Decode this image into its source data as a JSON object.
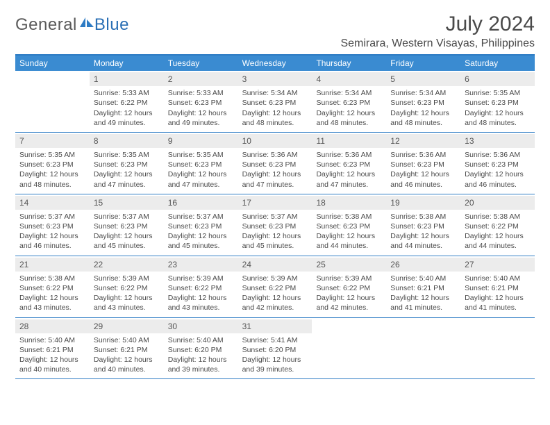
{
  "brand": {
    "main": "General",
    "sub": "Blue"
  },
  "title": "July 2024",
  "location": "Semirara, Western Visayas, Philippines",
  "colors": {
    "header_bg": "#3a8bd1",
    "border": "#2d7bc4",
    "daynum_bg": "#ececec",
    "text": "#4a4a4a"
  },
  "dayNames": [
    "Sunday",
    "Monday",
    "Tuesday",
    "Wednesday",
    "Thursday",
    "Friday",
    "Saturday"
  ],
  "weeks": [
    [
      {
        "empty": true
      },
      {
        "n": "1",
        "sr": "Sunrise: 5:33 AM",
        "ss": "Sunset: 6:22 PM",
        "d1": "Daylight: 12 hours",
        "d2": "and 49 minutes."
      },
      {
        "n": "2",
        "sr": "Sunrise: 5:33 AM",
        "ss": "Sunset: 6:23 PM",
        "d1": "Daylight: 12 hours",
        "d2": "and 49 minutes."
      },
      {
        "n": "3",
        "sr": "Sunrise: 5:34 AM",
        "ss": "Sunset: 6:23 PM",
        "d1": "Daylight: 12 hours",
        "d2": "and 48 minutes."
      },
      {
        "n": "4",
        "sr": "Sunrise: 5:34 AM",
        "ss": "Sunset: 6:23 PM",
        "d1": "Daylight: 12 hours",
        "d2": "and 48 minutes."
      },
      {
        "n": "5",
        "sr": "Sunrise: 5:34 AM",
        "ss": "Sunset: 6:23 PM",
        "d1": "Daylight: 12 hours",
        "d2": "and 48 minutes."
      },
      {
        "n": "6",
        "sr": "Sunrise: 5:35 AM",
        "ss": "Sunset: 6:23 PM",
        "d1": "Daylight: 12 hours",
        "d2": "and 48 minutes."
      }
    ],
    [
      {
        "n": "7",
        "sr": "Sunrise: 5:35 AM",
        "ss": "Sunset: 6:23 PM",
        "d1": "Daylight: 12 hours",
        "d2": "and 48 minutes."
      },
      {
        "n": "8",
        "sr": "Sunrise: 5:35 AM",
        "ss": "Sunset: 6:23 PM",
        "d1": "Daylight: 12 hours",
        "d2": "and 47 minutes."
      },
      {
        "n": "9",
        "sr": "Sunrise: 5:35 AM",
        "ss": "Sunset: 6:23 PM",
        "d1": "Daylight: 12 hours",
        "d2": "and 47 minutes."
      },
      {
        "n": "10",
        "sr": "Sunrise: 5:36 AM",
        "ss": "Sunset: 6:23 PM",
        "d1": "Daylight: 12 hours",
        "d2": "and 47 minutes."
      },
      {
        "n": "11",
        "sr": "Sunrise: 5:36 AM",
        "ss": "Sunset: 6:23 PM",
        "d1": "Daylight: 12 hours",
        "d2": "and 47 minutes."
      },
      {
        "n": "12",
        "sr": "Sunrise: 5:36 AM",
        "ss": "Sunset: 6:23 PM",
        "d1": "Daylight: 12 hours",
        "d2": "and 46 minutes."
      },
      {
        "n": "13",
        "sr": "Sunrise: 5:36 AM",
        "ss": "Sunset: 6:23 PM",
        "d1": "Daylight: 12 hours",
        "d2": "and 46 minutes."
      }
    ],
    [
      {
        "n": "14",
        "sr": "Sunrise: 5:37 AM",
        "ss": "Sunset: 6:23 PM",
        "d1": "Daylight: 12 hours",
        "d2": "and 46 minutes."
      },
      {
        "n": "15",
        "sr": "Sunrise: 5:37 AM",
        "ss": "Sunset: 6:23 PM",
        "d1": "Daylight: 12 hours",
        "d2": "and 45 minutes."
      },
      {
        "n": "16",
        "sr": "Sunrise: 5:37 AM",
        "ss": "Sunset: 6:23 PM",
        "d1": "Daylight: 12 hours",
        "d2": "and 45 minutes."
      },
      {
        "n": "17",
        "sr": "Sunrise: 5:37 AM",
        "ss": "Sunset: 6:23 PM",
        "d1": "Daylight: 12 hours",
        "d2": "and 45 minutes."
      },
      {
        "n": "18",
        "sr": "Sunrise: 5:38 AM",
        "ss": "Sunset: 6:23 PM",
        "d1": "Daylight: 12 hours",
        "d2": "and 44 minutes."
      },
      {
        "n": "19",
        "sr": "Sunrise: 5:38 AM",
        "ss": "Sunset: 6:23 PM",
        "d1": "Daylight: 12 hours",
        "d2": "and 44 minutes."
      },
      {
        "n": "20",
        "sr": "Sunrise: 5:38 AM",
        "ss": "Sunset: 6:22 PM",
        "d1": "Daylight: 12 hours",
        "d2": "and 44 minutes."
      }
    ],
    [
      {
        "n": "21",
        "sr": "Sunrise: 5:38 AM",
        "ss": "Sunset: 6:22 PM",
        "d1": "Daylight: 12 hours",
        "d2": "and 43 minutes."
      },
      {
        "n": "22",
        "sr": "Sunrise: 5:39 AM",
        "ss": "Sunset: 6:22 PM",
        "d1": "Daylight: 12 hours",
        "d2": "and 43 minutes."
      },
      {
        "n": "23",
        "sr": "Sunrise: 5:39 AM",
        "ss": "Sunset: 6:22 PM",
        "d1": "Daylight: 12 hours",
        "d2": "and 43 minutes."
      },
      {
        "n": "24",
        "sr": "Sunrise: 5:39 AM",
        "ss": "Sunset: 6:22 PM",
        "d1": "Daylight: 12 hours",
        "d2": "and 42 minutes."
      },
      {
        "n": "25",
        "sr": "Sunrise: 5:39 AM",
        "ss": "Sunset: 6:22 PM",
        "d1": "Daylight: 12 hours",
        "d2": "and 42 minutes."
      },
      {
        "n": "26",
        "sr": "Sunrise: 5:40 AM",
        "ss": "Sunset: 6:21 PM",
        "d1": "Daylight: 12 hours",
        "d2": "and 41 minutes."
      },
      {
        "n": "27",
        "sr": "Sunrise: 5:40 AM",
        "ss": "Sunset: 6:21 PM",
        "d1": "Daylight: 12 hours",
        "d2": "and 41 minutes."
      }
    ],
    [
      {
        "n": "28",
        "sr": "Sunrise: 5:40 AM",
        "ss": "Sunset: 6:21 PM",
        "d1": "Daylight: 12 hours",
        "d2": "and 40 minutes."
      },
      {
        "n": "29",
        "sr": "Sunrise: 5:40 AM",
        "ss": "Sunset: 6:21 PM",
        "d1": "Daylight: 12 hours",
        "d2": "and 40 minutes."
      },
      {
        "n": "30",
        "sr": "Sunrise: 5:40 AM",
        "ss": "Sunset: 6:20 PM",
        "d1": "Daylight: 12 hours",
        "d2": "and 39 minutes."
      },
      {
        "n": "31",
        "sr": "Sunrise: 5:41 AM",
        "ss": "Sunset: 6:20 PM",
        "d1": "Daylight: 12 hours",
        "d2": "and 39 minutes."
      },
      {
        "empty": true
      },
      {
        "empty": true
      },
      {
        "empty": true
      }
    ]
  ]
}
